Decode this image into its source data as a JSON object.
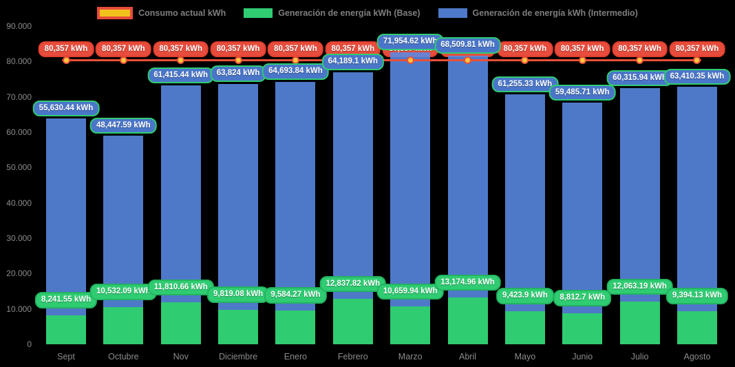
{
  "legend": {
    "items": [
      {
        "label": "Consumo actual kWh",
        "icon": "consumo-line-swatch",
        "fill": "#F2C21C",
        "border": "#E74C3C",
        "type": "line"
      },
      {
        "label": "Generación de energía kWh (Base)",
        "icon": "base-swatch",
        "fill": "#2FCC72",
        "type": "bar"
      },
      {
        "label": "Generación de energía kWh (Intermedio)",
        "icon": "intermedio-swatch",
        "fill": "#4E79C8",
        "type": "bar"
      }
    ]
  },
  "axes": {
    "y_ticks": [
      "90.000",
      "80.000",
      "70.000",
      "60.000",
      "50.000",
      "40.000",
      "30.000",
      "20.000",
      "10.000",
      "0"
    ],
    "x_ticks": [
      "Sept",
      "Octubre",
      "Nov",
      "Diciembre",
      "Enero",
      "Febrero",
      "Marzo",
      "Abril",
      "Mayo",
      "Junio",
      "Julio",
      "Agosto"
    ]
  },
  "colors": {
    "background": "#000000",
    "bar_base": "#2FCC72",
    "bar_intermedio": "#4E79C8",
    "line_consumo": "#E8503A",
    "dot_consumo": "#FFC53D",
    "pill_consumo": "#E74C3C",
    "axis_text": "#8C8C8C"
  },
  "chart_data": {
    "type": "bar",
    "stacked": true,
    "title": "",
    "xlabel": "",
    "ylabel": "",
    "ylim": [
      0,
      90000
    ],
    "grid": false,
    "legend_position": "top-center",
    "categories": [
      "Sept",
      "Octubre",
      "Nov",
      "Diciembre",
      "Enero",
      "Febrero",
      "Marzo",
      "Abril",
      "Mayo",
      "Junio",
      "Julio",
      "Agosto"
    ],
    "series": [
      {
        "name": "Generación de energía kWh (Base)",
        "type": "bar",
        "color": "#2FCC72",
        "values": [
          8241.55,
          10532.09,
          11810.66,
          9819.08,
          9584.27,
          12837.82,
          10659.94,
          13174.96,
          9423.9,
          8812.7,
          12063.19,
          9394.13
        ],
        "labels": [
          "8,241.55 kWh",
          "10,532.09 kWh",
          "11,810.66 kWh",
          "9,819.08 kWh",
          "9,584.27 kWh",
          "12,837.82 kWh",
          "10,659.94 kWh",
          "13,174.96 kWh",
          "9,423.9 kWh",
          "8,812.7 kWh",
          "12,063.19 kWh",
          "9,394.13 kWh"
        ]
      },
      {
        "name": "Generación de energía kWh (Intermedio)",
        "type": "bar",
        "color": "#4E79C8",
        "values": [
          55630.44,
          48447.59,
          61415.44,
          63824,
          64693.84,
          64189.1,
          71954.62,
          68509.81,
          61255.33,
          59485.71,
          60315.94,
          63410.35
        ],
        "labels": [
          "55,630.44 kWh",
          "48,447.59 kWh",
          "61,415.44 kWh",
          "63,824 kWh",
          "64,693.84 kWh",
          "64,189.1 kWh",
          "71,954.62 kWh",
          "68,509.81 kWh",
          "61,255.33 kWh",
          "59,485.71 kWh",
          "60,315.94 kWh",
          "63,410.35 kWh"
        ]
      },
      {
        "name": "Consumo actual kWh",
        "type": "line",
        "color": "#E8503A",
        "values": [
          80357,
          80357,
          80357,
          80357,
          80357,
          80357,
          80357,
          80357,
          80357,
          80357,
          80357,
          80357
        ],
        "labels": [
          "80,357 kWh",
          "80,357 kWh",
          "80,357 kWh",
          "80,357 kWh",
          "80,357 kWh",
          "80,357 kWh",
          "80,357 kWh",
          "80,357 kWh",
          "80,357 kWh",
          "80,357 kWh",
          "80,357 kWh",
          "80,357 kWh"
        ]
      }
    ]
  }
}
